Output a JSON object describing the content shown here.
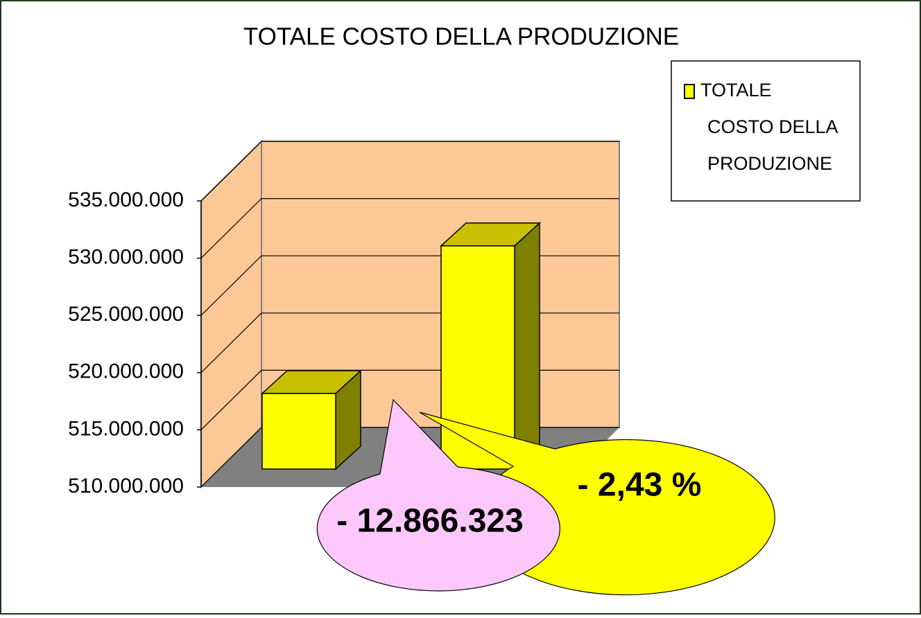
{
  "chart_data": {
    "type": "bar3d",
    "title": "TOTALE COSTO DELLA PRODUZIONE",
    "categories": [
      null,
      null
    ],
    "series": [
      {
        "name": "TOTALE COSTO DELLA PRODUZIONE",
        "color": "#ffff00",
        "values": [
          516600000,
          529500000
        ]
      }
    ],
    "ylim": [
      510000000,
      535000000
    ],
    "yticks": [
      {
        "value": 510000000,
        "label": "510.000.000"
      },
      {
        "value": 515000000,
        "label": "515.000.000"
      },
      {
        "value": 520000000,
        "label": "520.000.000"
      },
      {
        "value": 525000000,
        "label": "525.000.000"
      },
      {
        "value": 530000000,
        "label": "530.000.000"
      },
      {
        "value": 535000000,
        "label": "535.000.000"
      }
    ],
    "grid": true,
    "legend": "top-right",
    "annotations": [
      "- 12.866.323",
      "- 2,43 %"
    ]
  }
}
